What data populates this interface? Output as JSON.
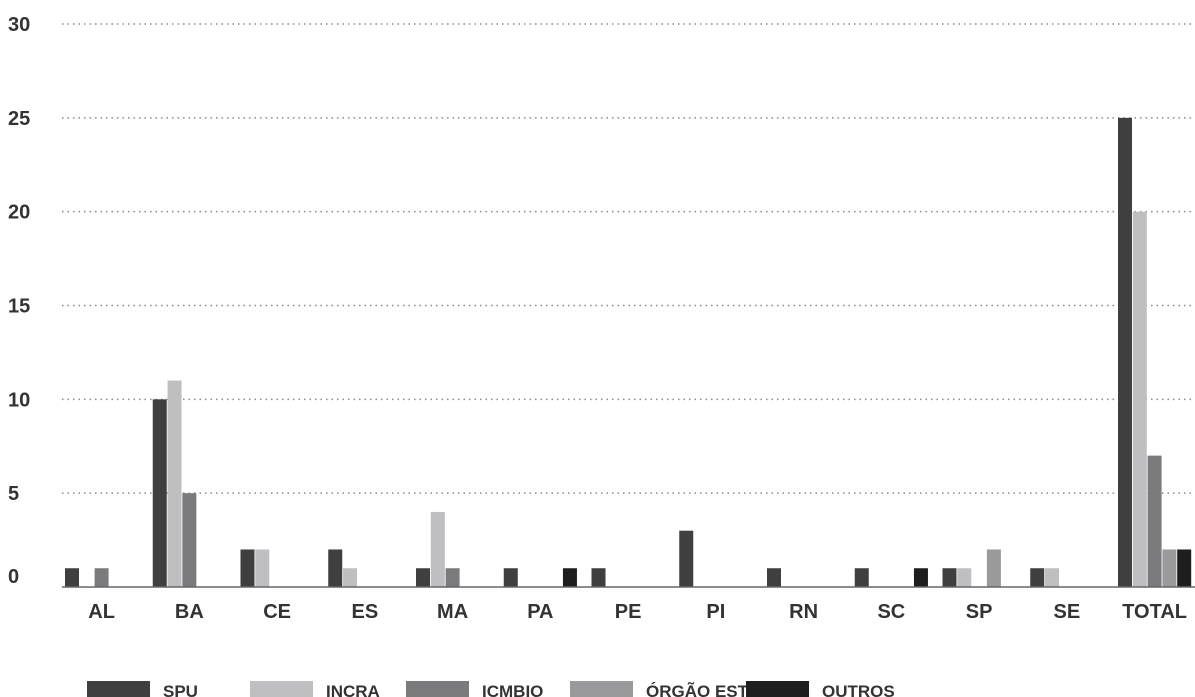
{
  "chart_data": {
    "type": "bar",
    "title": "",
    "xlabel": "",
    "ylabel": "",
    "ylim": [
      0,
      30
    ],
    "yticks": [
      0,
      5,
      10,
      15,
      20,
      25,
      30
    ],
    "grid": true,
    "legend_position": "bottom",
    "categories": [
      "AL",
      "BA",
      "CE",
      "ES",
      "MA",
      "PA",
      "PE",
      "PI",
      "RN",
      "SC",
      "SP",
      "SE",
      "TOTAL"
    ],
    "series": [
      {
        "name": "SPU",
        "color": "#3f3f3f",
        "values": [
          1,
          10,
          2,
          2,
          1,
          1,
          1,
          3,
          1,
          1,
          1,
          1,
          25
        ]
      },
      {
        "name": "INCRA",
        "color": "#bfbfc1",
        "values": [
          0,
          11,
          2,
          1,
          4,
          0,
          0,
          0,
          0,
          0,
          1,
          1,
          20
        ]
      },
      {
        "name": "ICMBIO",
        "color": "#7b7b7d",
        "values": [
          1,
          5,
          0,
          0,
          1,
          0,
          0,
          0,
          0,
          0,
          0,
          0,
          7
        ]
      },
      {
        "name": "ÓRGÃO ESTADUAL",
        "color": "#9a9a9c",
        "values": [
          0,
          0,
          0,
          0,
          0,
          0,
          0,
          0,
          0,
          0,
          2,
          0,
          2
        ]
      },
      {
        "name": "OUTROS",
        "color": "#1e1e1e",
        "values": [
          0,
          0,
          0,
          0,
          0,
          1,
          0,
          0,
          0,
          1,
          0,
          0,
          2
        ]
      }
    ]
  }
}
